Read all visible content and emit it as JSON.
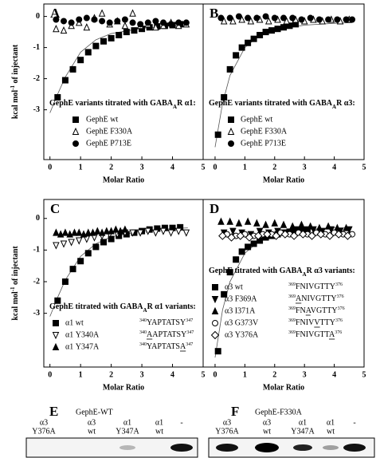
{
  "chart_data": [
    {
      "type": "scatter",
      "letter": "A",
      "ylabel": [
        "kcal mol",
        "-1",
        " of injectant"
      ],
      "xlabel": "Molar Ratio",
      "xlim": [
        -0.2,
        5
      ],
      "xticks": [
        0,
        1,
        2,
        3,
        4,
        5
      ],
      "ylim": [
        -4.6,
        0.4
      ],
      "yticks": [
        0,
        -1,
        -2,
        -3
      ],
      "legend_title": [
        "GephE variants titrated with GABA",
        "A",
        "R α1:"
      ],
      "series": [
        {
          "name": "GephE wt",
          "marker": "square",
          "filled": true,
          "x": [
            0.25,
            0.5,
            0.75,
            1.0,
            1.25,
            1.5,
            1.75,
            2.0,
            2.25,
            2.5,
            2.75,
            3.0,
            3.25,
            3.5,
            3.75,
            4.0,
            4.25
          ],
          "values": [
            -2.6,
            -2.05,
            -1.7,
            -1.4,
            -1.15,
            -0.95,
            -0.8,
            -0.7,
            -0.6,
            -0.5,
            -0.45,
            -0.4,
            -0.35,
            -0.32,
            -0.3,
            -0.28,
            -0.25
          ]
        },
        {
          "name": "GephE F330A",
          "marker": "triangle-up",
          "filled": false,
          "x": [
            0.2,
            0.45,
            0.7,
            0.95,
            1.2,
            1.45,
            1.7,
            1.95,
            2.2,
            2.45,
            2.7,
            2.95,
            3.2,
            3.45,
            3.7,
            3.95,
            4.2,
            4.45
          ],
          "values": [
            -0.4,
            -0.45,
            -0.3,
            -0.2,
            -0.35,
            -0.05,
            0.1,
            -0.25,
            -0.15,
            -0.3,
            0.1,
            -0.3,
            -0.25,
            -0.35,
            -0.3,
            -0.2,
            -0.3,
            -0.25
          ]
        },
        {
          "name": "GephE P713E",
          "marker": "circle",
          "filled": true,
          "x": [
            0.2,
            0.45,
            0.7,
            0.95,
            1.2,
            1.45,
            1.7,
            1.95,
            2.2,
            2.45,
            2.7,
            2.95,
            3.2,
            3.45,
            3.7,
            3.95,
            4.2,
            4.45
          ],
          "values": [
            -0.1,
            -0.15,
            -0.2,
            -0.1,
            -0.05,
            -0.1,
            -0.15,
            -0.2,
            -0.15,
            -0.1,
            -0.2,
            -0.25,
            -0.2,
            -0.15,
            -0.2,
            -0.25,
            -0.2,
            -0.2
          ]
        }
      ],
      "fit": {
        "x": [
          0,
          0.25,
          0.5,
          1,
          1.5,
          2,
          3,
          4,
          4.5
        ],
        "values": [
          -3.1,
          -2.5,
          -1.95,
          -1.15,
          -0.75,
          -0.55,
          -0.38,
          -0.3,
          -0.28
        ]
      }
    },
    {
      "type": "scatter",
      "letter": "B",
      "xlabel": "Molar Ratio",
      "xlim": [
        -0.4,
        5
      ],
      "xticks": [
        0,
        1,
        2,
        3,
        4,
        5
      ],
      "ylim": [
        -4.6,
        0.4
      ],
      "legend_title": [
        "GephE variants titrated with GABA",
        "A",
        "R α3:"
      ],
      "series": [
        {
          "name": "GephE wt",
          "marker": "square",
          "filled": true,
          "x": [
            0.1,
            0.3,
            0.5,
            0.7,
            0.9,
            1.1,
            1.3,
            1.5,
            1.7,
            1.9,
            2.1,
            2.3,
            2.5,
            2.7
          ],
          "values": [
            -3.8,
            -2.6,
            -1.7,
            -1.25,
            -1.0,
            -0.85,
            -0.72,
            -0.6,
            -0.5,
            -0.45,
            -0.4,
            -0.35,
            -0.3,
            -0.25
          ]
        },
        {
          "name": "GephE F330A",
          "marker": "triangle-up",
          "filled": false,
          "x": [
            0.3,
            0.6,
            0.9,
            1.2,
            1.5,
            1.8,
            2.1,
            2.4,
            2.7,
            3.0,
            3.3,
            3.6,
            3.9,
            4.2,
            4.5
          ],
          "values": [
            -0.15,
            -0.15,
            -0.1,
            -0.15,
            -0.1,
            -0.15,
            -0.1,
            -0.15,
            -0.1,
            -0.15,
            -0.1,
            -0.15,
            -0.1,
            -0.15,
            -0.1
          ]
        },
        {
          "name": "GephE P713E",
          "marker": "circle",
          "filled": true,
          "x": [
            0.2,
            0.5,
            0.8,
            1.1,
            1.4,
            1.7,
            2.0,
            2.3,
            2.6,
            2.9,
            3.2,
            3.5,
            3.8,
            4.1,
            4.4,
            4.6
          ],
          "values": [
            -0.05,
            -0.05,
            0,
            -0.05,
            -0.05,
            0,
            -0.05,
            -0.05,
            -0.05,
            -0.1,
            -0.05,
            -0.1,
            -0.1,
            -0.1,
            -0.1,
            -0.1
          ]
        }
      ],
      "fit": {
        "x": [
          0,
          0.25,
          0.5,
          1,
          1.5,
          2,
          3,
          4,
          4.6
        ],
        "values": [
          -4.2,
          -2.8,
          -1.9,
          -1.0,
          -0.6,
          -0.42,
          -0.28,
          -0.22,
          -0.2
        ]
      }
    },
    {
      "type": "scatter",
      "letter": "C",
      "ylabel": [
        "kcal mol",
        "-1",
        " of injectant"
      ],
      "xlabel": "Molar Ratio",
      "xlim": [
        -0.2,
        5
      ],
      "xticks": [
        0,
        1,
        2,
        3,
        4,
        5
      ],
      "ylim": [
        -4.7,
        0.6
      ],
      "yticks": [
        0,
        -1,
        -2,
        -3
      ],
      "legend_title": [
        "GephE titrated with GABA",
        "A",
        "R α1 variants:"
      ],
      "series": [
        {
          "name": "α1 wt",
          "marker": "square",
          "filled": true,
          "start": "340",
          "seq": "YAPTATSY",
          "end": "347",
          "x": [
            0.25,
            0.5,
            0.75,
            1.0,
            1.25,
            1.5,
            1.75,
            2.0,
            2.25,
            2.5,
            2.75,
            3.0,
            3.25,
            3.5,
            3.75,
            4.0,
            4.25
          ],
          "values": [
            -2.6,
            -2.0,
            -1.6,
            -1.35,
            -1.1,
            -0.9,
            -0.75,
            -0.65,
            -0.55,
            -0.5,
            -0.45,
            -0.4,
            -0.35,
            -0.32,
            -0.3,
            -0.3,
            -0.28
          ]
        },
        {
          "name": "α1 Y340A",
          "marker": "triangle-down",
          "filled": false,
          "start": "340",
          "seq": "AAPTATSY",
          "end": "347",
          "underline": 0,
          "x": [
            0.2,
            0.45,
            0.7,
            0.95,
            1.2,
            1.45,
            1.7,
            1.95,
            2.2,
            2.45,
            2.7,
            2.95,
            3.2,
            3.45,
            3.7,
            3.95,
            4.2,
            4.45
          ],
          "values": [
            -0.85,
            -0.8,
            -0.75,
            -0.7,
            -0.65,
            -0.6,
            -0.55,
            -0.5,
            -0.5,
            -0.45,
            -0.45,
            -0.45,
            -0.4,
            -0.45,
            -0.4,
            -0.45,
            -0.4,
            -0.45
          ]
        },
        {
          "name": "α1 Y347A",
          "marker": "triangle-up",
          "filled": true,
          "start": "340",
          "seq": "YAPTATSA",
          "end": "347",
          "underline": 7,
          "x": [
            0.2,
            0.35,
            0.5,
            0.65,
            0.8,
            0.95,
            1.1,
            1.25,
            1.4,
            1.55,
            1.7,
            1.85,
            2.0,
            2.15,
            2.3,
            2.45
          ],
          "values": [
            -0.45,
            -0.5,
            -0.45,
            -0.5,
            -0.45,
            -0.45,
            -0.5,
            -0.45,
            -0.45,
            -0.4,
            -0.45,
            -0.4,
            -0.4,
            -0.35,
            -0.4,
            -0.35
          ]
        }
      ],
      "fit": {
        "x": [
          0,
          0.25,
          0.5,
          1,
          1.5,
          2,
          3,
          4,
          4.5
        ],
        "values": [
          -3.1,
          -2.5,
          -1.95,
          -1.2,
          -0.8,
          -0.58,
          -0.4,
          -0.32,
          -0.3
        ]
      }
    },
    {
      "type": "scatter",
      "letter": "D",
      "xlabel": "Molar Ratio",
      "xlim": [
        -0.4,
        5
      ],
      "xticks": [
        0,
        1,
        2,
        3,
        4,
        5
      ],
      "ylim": [
        -4.7,
        0.6
      ],
      "legend_title": [
        "GephE titrated with GABA",
        "A",
        "R α3 variants:"
      ],
      "series": [
        {
          "name": "α3 wt",
          "marker": "square",
          "filled": true,
          "start": "369",
          "seq": "FNIVGTTY",
          "end": "376",
          "x": [
            0.1,
            0.3,
            0.5,
            0.7,
            0.9,
            1.1,
            1.3,
            1.5,
            1.7,
            1.9,
            2.1,
            2.3,
            2.5,
            2.7,
            2.9,
            3.1
          ],
          "values": [
            -4.2,
            -2.4,
            -1.7,
            -1.3,
            -1.05,
            -0.9,
            -0.8,
            -0.7,
            -0.6,
            -0.55,
            -0.5,
            -0.45,
            -0.42,
            -0.4,
            -0.38,
            -0.35
          ]
        },
        {
          "name": "α3 F369A",
          "marker": "triangle-down",
          "filled": true,
          "start": "369",
          "seq": "ANIVGTTY",
          "end": "376",
          "underline": 0,
          "x": [
            0.3,
            0.6,
            0.9,
            1.2,
            1.5,
            1.8,
            2.1,
            2.4,
            2.7,
            3.0,
            3.3,
            3.6,
            3.9,
            4.2,
            4.5
          ],
          "values": [
            -0.45,
            -0.4,
            -0.45,
            -0.5,
            -0.4,
            -0.45,
            -0.4,
            -0.45,
            -0.35,
            -0.4,
            -0.35,
            -0.4,
            -0.35,
            -0.4,
            -0.35
          ]
        },
        {
          "name": "α3 I371A",
          "marker": "triangle-up",
          "filled": true,
          "start": "369",
          "seq": "FNAVGTTY",
          "end": "376",
          "underline": 2,
          "x": [
            0.2,
            0.5,
            0.8,
            1.1,
            1.4,
            1.7,
            2.0,
            2.3,
            2.6,
            2.9,
            3.2,
            3.5,
            3.8,
            4.1,
            4.4
          ],
          "values": [
            -0.1,
            -0.1,
            -0.15,
            -0.1,
            -0.15,
            -0.2,
            -0.15,
            -0.2,
            -0.25,
            -0.2,
            -0.25,
            -0.3,
            -0.25,
            -0.3,
            -0.3
          ]
        },
        {
          "name": "α3 G373V",
          "marker": "circle",
          "filled": false,
          "start": "369",
          "seq": "FNIVVTTY",
          "end": "376",
          "underline": 4,
          "x": [
            0.4,
            0.7,
            1.0,
            1.3,
            1.6,
            1.9,
            2.2,
            2.5,
            2.8,
            3.1,
            3.4,
            3.7,
            4.0,
            4.3,
            4.6
          ],
          "values": [
            -0.5,
            -0.55,
            -0.5,
            -0.55,
            -0.5,
            -0.5,
            -0.45,
            -0.5,
            -0.45,
            -0.5,
            -0.45,
            -0.5,
            -0.45,
            -0.5,
            -0.5
          ]
        },
        {
          "name": "α3 Y376A",
          "marker": "diamond",
          "filled": false,
          "start": "369",
          "seq": "FNIVGTTA",
          "end": "376",
          "underline": 7,
          "x": [
            0.25,
            0.55,
            0.85,
            1.15,
            1.45,
            1.75,
            2.05,
            2.35,
            2.65,
            2.95,
            3.25,
            3.55,
            3.85,
            4.15,
            4.45
          ],
          "values": [
            -0.55,
            -0.6,
            -0.55,
            -0.6,
            -0.55,
            -0.5,
            -0.55,
            -0.5,
            -0.55,
            -0.5,
            -0.55,
            -0.5,
            -0.55,
            -0.5,
            -0.55
          ]
        }
      ],
      "fit": {
        "x": [
          0,
          0.25,
          0.5,
          1,
          1.5,
          2,
          3,
          4,
          4.6
        ],
        "values": [
          -4.4,
          -2.9,
          -2.0,
          -1.1,
          -0.7,
          -0.5,
          -0.35,
          -0.3,
          -0.28
        ]
      }
    }
  ],
  "gels": [
    {
      "letter": "E",
      "title": "GephE-WT",
      "lanes": [
        [
          "α3",
          "Y376A"
        ],
        [
          "α3",
          "wt"
        ],
        [
          "α1",
          "Y347A"
        ],
        [
          "α1",
          "wt"
        ],
        [
          "-"
        ]
      ]
    },
    {
      "letter": "F",
      "title": "GephE-F330A",
      "lanes": [
        [
          "α3",
          "Y376A"
        ],
        [
          "α3",
          "wt"
        ],
        [
          "α1",
          "Y347A"
        ],
        [
          "α1",
          "wt"
        ],
        [
          "-"
        ]
      ]
    }
  ]
}
